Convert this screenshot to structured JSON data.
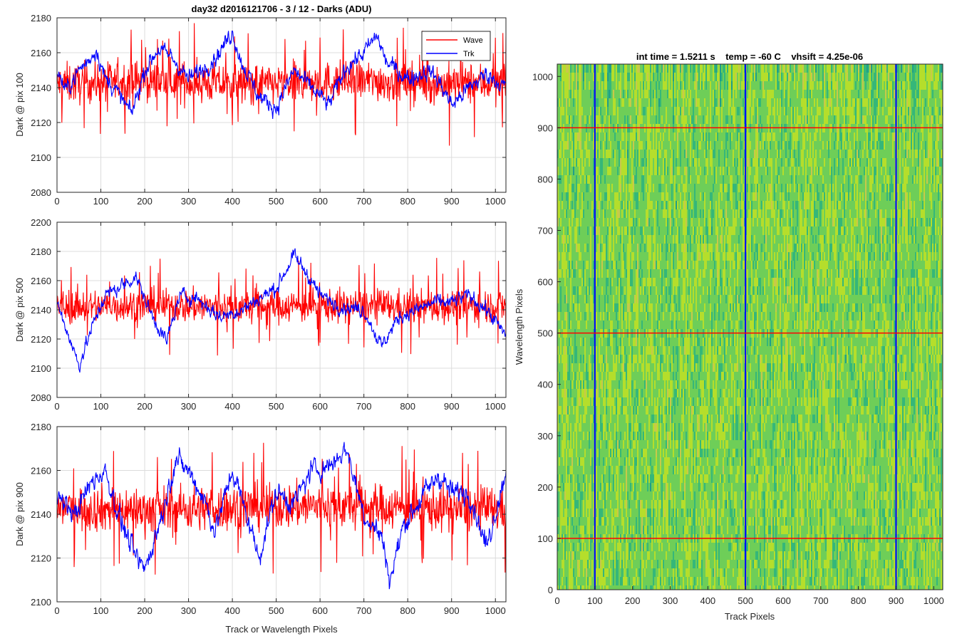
{
  "chart_data": [
    {
      "type": "line",
      "title": "day32 d2016121706 - 3 / 12 - Darks (ADU)",
      "ylabel": "Dark @ pix 100",
      "xlabel": "",
      "xlim": [
        0,
        1024
      ],
      "ylim": [
        2080,
        2180
      ],
      "xticks": [
        0,
        100,
        200,
        300,
        400,
        500,
        600,
        700,
        800,
        900,
        1000
      ],
      "yticks": [
        2080,
        2100,
        2120,
        2140,
        2160,
        2180
      ],
      "grid": true,
      "legend": {
        "position": "top-right",
        "entries": [
          "Wave",
          "Trk"
        ]
      },
      "series": [
        {
          "name": "Wave",
          "color": "#ff0000",
          "mean": 2143,
          "noise": 11,
          "trend": [
            [
              0,
              2142
            ],
            [
              100,
              2143
            ],
            [
              200,
              2144
            ],
            [
              300,
              2143
            ],
            [
              400,
              2142
            ],
            [
              500,
              2142
            ],
            [
              600,
              2143
            ],
            [
              700,
              2144
            ],
            [
              800,
              2143
            ],
            [
              900,
              2142
            ],
            [
              1024,
              2143
            ]
          ]
        },
        {
          "name": "Trk",
          "color": "#0000ff",
          "mean": 2143,
          "noise": 4,
          "trend": [
            [
              0,
              2150
            ],
            [
              20,
              2138
            ],
            [
              50,
              2150
            ],
            [
              70,
              2155
            ],
            [
              90,
              2162
            ],
            [
              110,
              2145
            ],
            [
              130,
              2140
            ],
            [
              170,
              2125
            ],
            [
              200,
              2150
            ],
            [
              230,
              2162
            ],
            [
              260,
              2158
            ],
            [
              300,
              2145
            ],
            [
              340,
              2152
            ],
            [
              370,
              2160
            ],
            [
              400,
              2172
            ],
            [
              420,
              2155
            ],
            [
              460,
              2135
            ],
            [
              500,
              2128
            ],
            [
              540,
              2150
            ],
            [
              580,
              2140
            ],
            [
              620,
              2130
            ],
            [
              660,
              2152
            ],
            [
              700,
              2160
            ],
            [
              730,
              2170
            ],
            [
              750,
              2155
            ],
            [
              800,
              2145
            ],
            [
              850,
              2150
            ],
            [
              880,
              2140
            ],
            [
              900,
              2130
            ],
            [
              940,
              2140
            ],
            [
              980,
              2148
            ],
            [
              1024,
              2140
            ]
          ]
        }
      ]
    },
    {
      "type": "line",
      "title": "",
      "ylabel": "Dark @ pix 500",
      "xlabel": "",
      "xlim": [
        0,
        1024
      ],
      "ylim": [
        2080,
        2200
      ],
      "xticks": [
        0,
        100,
        200,
        300,
        400,
        500,
        600,
        700,
        800,
        900,
        1000
      ],
      "yticks": [
        2080,
        2100,
        2120,
        2140,
        2160,
        2180,
        2200
      ],
      "grid": true,
      "series": [
        {
          "name": "Wave",
          "color": "#ff0000",
          "mean": 2142,
          "noise": 11,
          "trend": [
            [
              0,
              2142
            ],
            [
              200,
              2143
            ],
            [
              400,
              2142
            ],
            [
              600,
              2143
            ],
            [
              800,
              2142
            ],
            [
              1024,
              2143
            ]
          ]
        },
        {
          "name": "Trk",
          "color": "#0000ff",
          "mean": 2140,
          "noise": 4,
          "trend": [
            [
              0,
              2145
            ],
            [
              20,
              2128
            ],
            [
              50,
              2102
            ],
            [
              80,
              2128
            ],
            [
              110,
              2150
            ],
            [
              140,
              2155
            ],
            [
              180,
              2163
            ],
            [
              210,
              2140
            ],
            [
              250,
              2118
            ],
            [
              280,
              2150
            ],
            [
              320,
              2148
            ],
            [
              370,
              2135
            ],
            [
              420,
              2140
            ],
            [
              500,
              2155
            ],
            [
              540,
              2177
            ],
            [
              570,
              2165
            ],
            [
              600,
              2150
            ],
            [
              650,
              2142
            ],
            [
              700,
              2140
            ],
            [
              740,
              2115
            ],
            [
              780,
              2135
            ],
            [
              820,
              2140
            ],
            [
              860,
              2145
            ],
            [
              900,
              2145
            ],
            [
              940,
              2150
            ],
            [
              980,
              2140
            ],
            [
              1024,
              2122
            ]
          ]
        }
      ]
    },
    {
      "type": "line",
      "title": "",
      "ylabel": "Dark @ pix 900",
      "xlabel": "Track or Wavelength Pixels",
      "xlim": [
        0,
        1024
      ],
      "ylim": [
        2100,
        2180
      ],
      "xticks": [
        0,
        100,
        200,
        300,
        400,
        500,
        600,
        700,
        800,
        900,
        1000
      ],
      "yticks": [
        2100,
        2120,
        2140,
        2160,
        2180
      ],
      "grid": true,
      "series": [
        {
          "name": "Wave",
          "color": "#ff0000",
          "mean": 2143,
          "noise": 10,
          "trend": [
            [
              0,
              2143
            ],
            [
              200,
              2142
            ],
            [
              400,
              2143
            ],
            [
              600,
              2144
            ],
            [
              800,
              2143
            ],
            [
              1024,
              2142
            ]
          ]
        },
        {
          "name": "Trk",
          "color": "#0000ff",
          "mean": 2140,
          "noise": 4,
          "trend": [
            [
              0,
              2148
            ],
            [
              40,
              2140
            ],
            [
              80,
              2155
            ],
            [
              110,
              2160
            ],
            [
              140,
              2140
            ],
            [
              180,
              2120
            ],
            [
              200,
              2115
            ],
            [
              240,
              2140
            ],
            [
              270,
              2165
            ],
            [
              300,
              2160
            ],
            [
              340,
              2145
            ],
            [
              360,
              2132
            ],
            [
              400,
              2160
            ],
            [
              440,
              2135
            ],
            [
              460,
              2120
            ],
            [
              500,
              2150
            ],
            [
              540,
              2145
            ],
            [
              580,
              2160
            ],
            [
              620,
              2162
            ],
            [
              660,
              2170
            ],
            [
              700,
              2140
            ],
            [
              740,
              2130
            ],
            [
              760,
              2110
            ],
            [
              790,
              2135
            ],
            [
              840,
              2150
            ],
            [
              870,
              2158
            ],
            [
              900,
              2150
            ],
            [
              940,
              2150
            ],
            [
              980,
              2125
            ],
            [
              1024,
              2160
            ]
          ]
        }
      ]
    },
    {
      "type": "heatmap",
      "title": "int time = 1.5211 s    temp = -60 C    vhsift = 4.25e-06",
      "xlabel": "Track Pixels",
      "ylabel": "Wavelength Pixels",
      "xlim": [
        0,
        1024
      ],
      "ylim": [
        0,
        1024
      ],
      "xticks": [
        0,
        100,
        200,
        300,
        400,
        500,
        600,
        700,
        800,
        900,
        1000
      ],
      "yticks": [
        0,
        100,
        200,
        300,
        400,
        500,
        600,
        700,
        800,
        900,
        1000
      ],
      "colormap": [
        "#1f9e89",
        "#35b779",
        "#6ece58",
        "#b5de2b",
        "#c8c94a"
      ],
      "vertical_lines": {
        "color": "#0000ff",
        "x": [
          100,
          500,
          900
        ]
      },
      "horizontal_lines": {
        "color": "#ff0000",
        "y": [
          100,
          500,
          900
        ]
      }
    }
  ]
}
